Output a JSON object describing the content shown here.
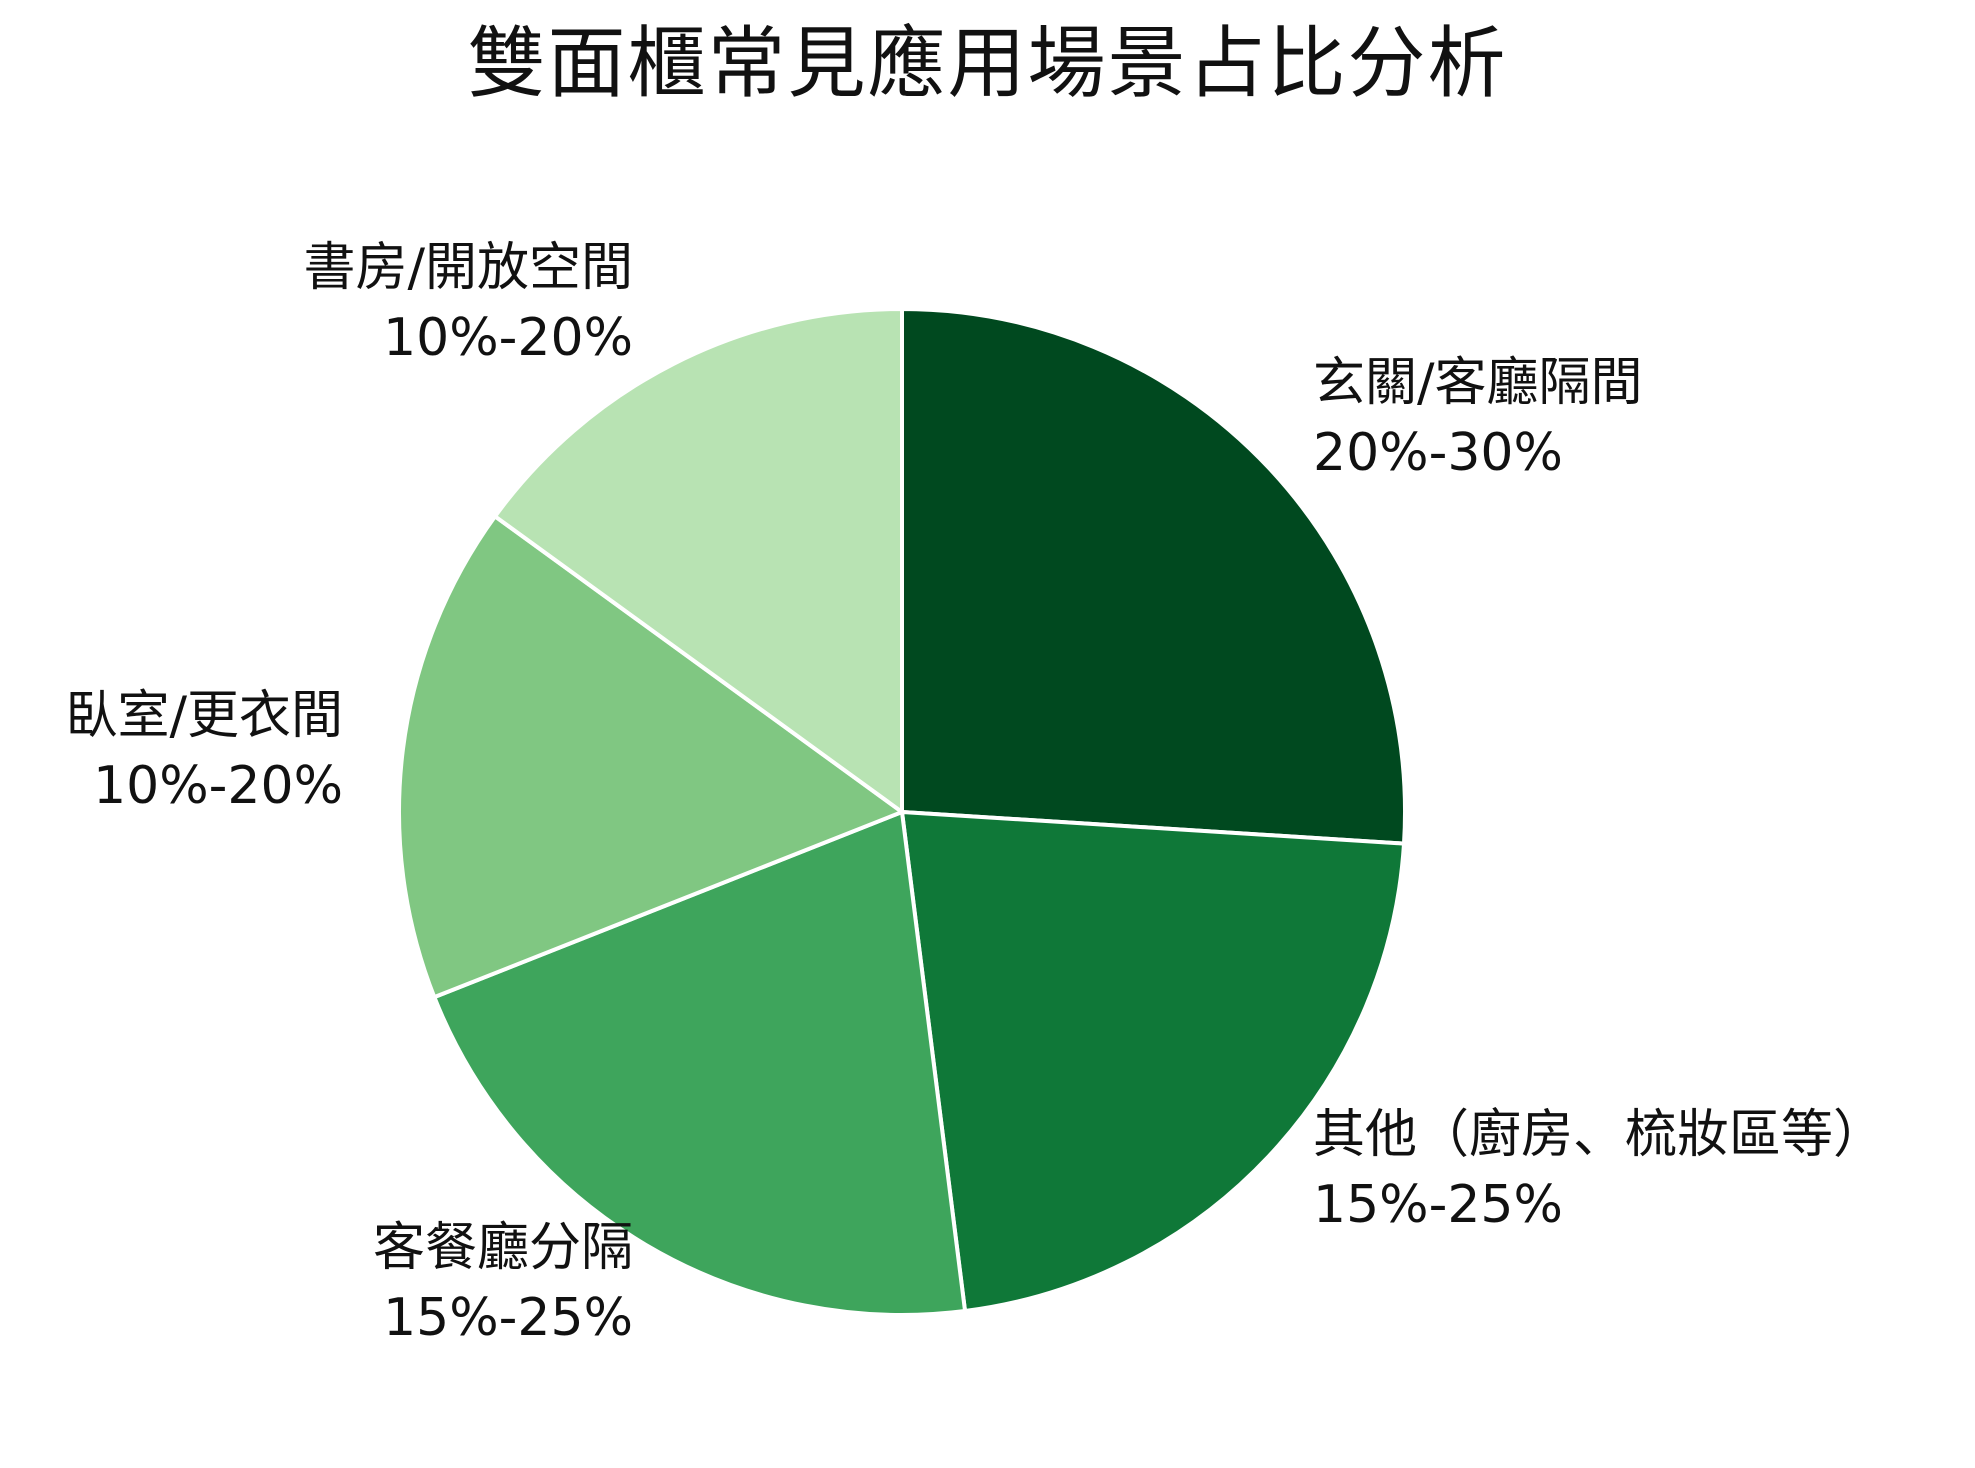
{
  "chart_data": {
    "type": "pie",
    "title": "雙面櫃常見應用場景占比分析",
    "slices": [
      {
        "name": "玄關/客廳隔間",
        "value_label": "20%-30%",
        "value": 26,
        "color": "#00491f"
      },
      {
        "name": "其他（廚房、梳妝區等）",
        "value_label": "15%-25%",
        "value": 22,
        "color": "#0f7838"
      },
      {
        "name": "客餐廳分隔",
        "value_label": "15%-25%",
        "value": 21,
        "color": "#3ea55c"
      },
      {
        "name": "臥室/更衣間",
        "value_label": "10%-20%",
        "value": 16,
        "color": "#80c782"
      },
      {
        "name": "書房/開放空間",
        "value_label": "10%-20%",
        "value": 15,
        "color": "#b8e3b3"
      }
    ],
    "start_angle": "12 o'clock",
    "direction": "clockwise",
    "slice_border_color": "#ffffff"
  }
}
